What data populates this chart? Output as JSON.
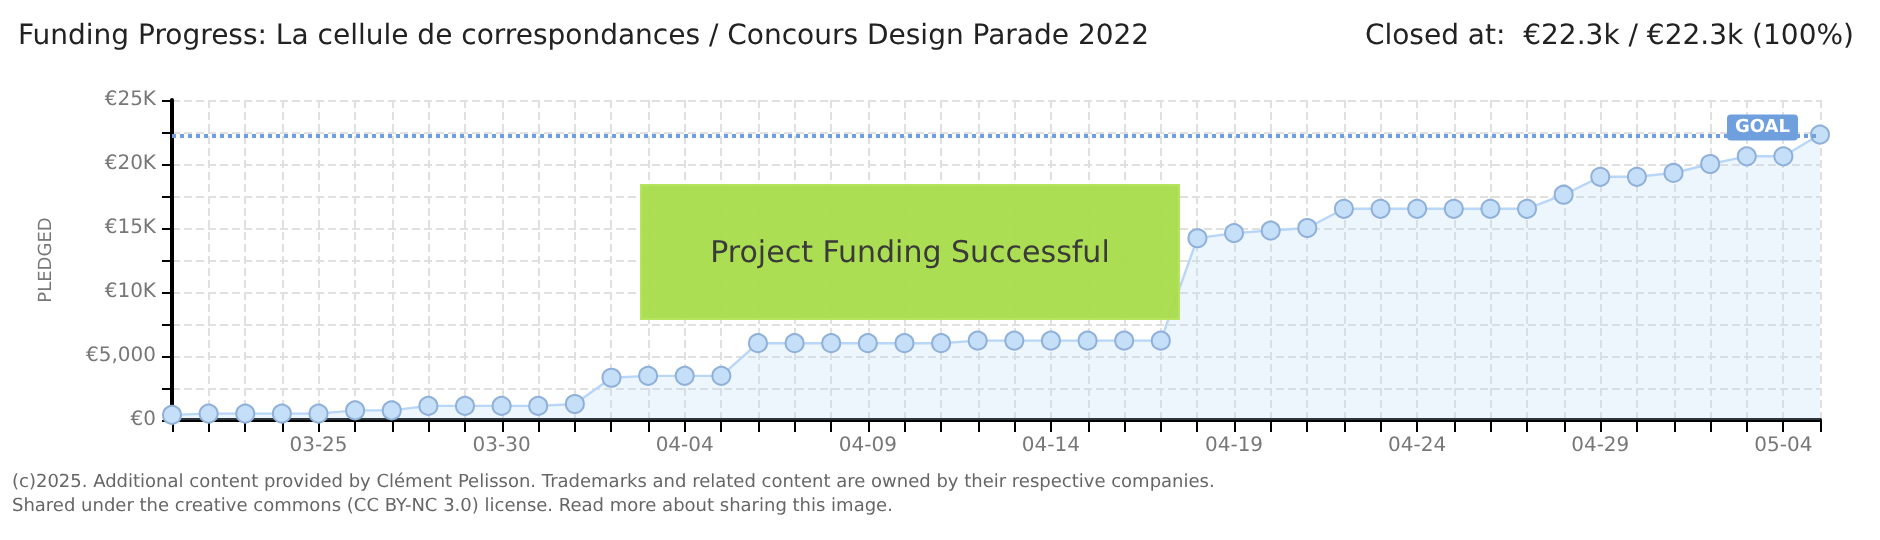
{
  "chart_data": {
    "type": "area",
    "title": "Funding Progress: La cellule de correspondances / Concours Design Parade 2022",
    "subtitle": "Closed at:  €22.3k / €22.3k (100%)",
    "ylabel": "PLEDGED",
    "categories": [
      null,
      null,
      null,
      null,
      "03-25",
      null,
      null,
      null,
      null,
      "03-30",
      null,
      null,
      null,
      null,
      "04-04",
      null,
      null,
      null,
      null,
      "04-09",
      null,
      null,
      null,
      null,
      "04-14",
      null,
      null,
      null,
      null,
      "04-19",
      null,
      null,
      null,
      null,
      "04-24",
      null,
      null,
      null,
      null,
      "04-29",
      null,
      null,
      null,
      null,
      "05-04",
      null
    ],
    "series": [
      {
        "color": "#b8d6f7",
        "values": [
          400,
          500,
          500,
          500,
          500,
          750,
          750,
          1100,
          1100,
          1100,
          1100,
          1250,
          3300,
          3450,
          3450,
          3450,
          6000,
          6000,
          6000,
          6000,
          6000,
          6000,
          6200,
          6200,
          6200,
          6200,
          6200,
          6200,
          14200,
          14600,
          14800,
          15000,
          16500,
          16500,
          16500,
          16500,
          16500,
          16500,
          17600,
          19000,
          19000,
          19300,
          20000,
          20600,
          20600,
          22300
        ]
      }
    ],
    "ylim": [
      0,
      25000
    ],
    "yticks": [
      {
        "value": 0,
        "label": "€0"
      },
      {
        "value": 2500,
        "label": null
      },
      {
        "value": 5000,
        "label": "€5,000"
      },
      {
        "value": 7500,
        "label": null
      },
      {
        "value": 10000,
        "label": "€10K"
      },
      {
        "value": 12500,
        "label": null
      },
      {
        "value": 15000,
        "label": "€15K"
      },
      {
        "value": 17500,
        "label": null
      },
      {
        "value": 20000,
        "label": "€20K"
      },
      {
        "value": 22500,
        "label": null
      },
      {
        "value": 25000,
        "label": "€25K"
      }
    ],
    "ref_lines": [
      {
        "axis": "y",
        "value": 22300,
        "label": "GOAL",
        "color": "#6f9fdc",
        "line_style": "dotted"
      }
    ],
    "annotations": [
      "Project Funding Successful",
      "(c)2025. Additional content provided by Clément Pelisson. Trademarks and related content are owned by their respective companies.",
      "Shared under the creative commons (CC BY-NC 3.0) license. Read more about sharing this image."
    ],
    "grid": true,
    "marker": "circle",
    "line_style": "solid"
  }
}
